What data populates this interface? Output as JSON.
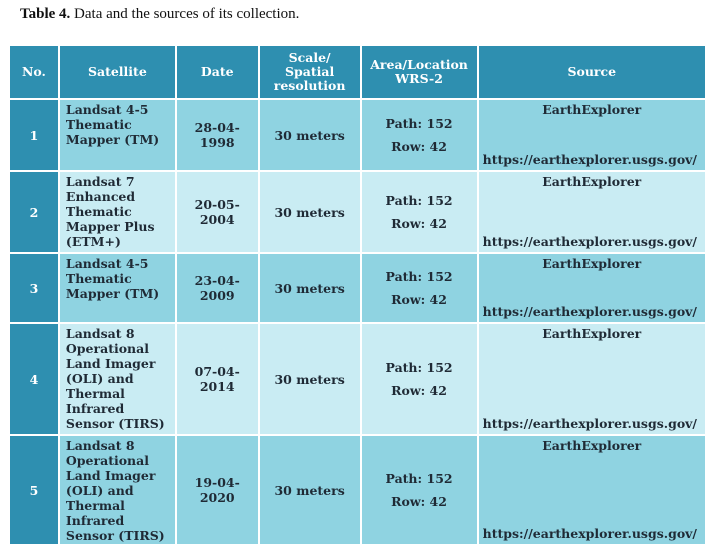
{
  "caption": {
    "label": "Table 4.",
    "text": " Data and the sources of its collection."
  },
  "table": {
    "headers": {
      "no": "No.",
      "satellite": "Satellite",
      "date": "Date",
      "scale": [
        "Scale/",
        "Spatial",
        "resolution"
      ],
      "area": [
        "Area/Location",
        "WRS-2"
      ],
      "source": "Source"
    },
    "rows": [
      {
        "no": "1",
        "satellite": [
          "Landsat 4-5",
          "Thematic",
          "Mapper (TM)"
        ],
        "date": [
          "28-04-",
          "1998"
        ],
        "scale": "30 meters",
        "path": "Path: 152",
        "row": "Row: 42",
        "source": "EarthExplorer",
        "url": "https://earthexplorer.usgs.gov/"
      },
      {
        "no": "2",
        "satellite": [
          "Landsat 7",
          "Enhanced",
          "Thematic",
          "Mapper Plus",
          "(ETM+)"
        ],
        "date": [
          "20-05-",
          "2004"
        ],
        "scale": "30 meters",
        "path": "Path: 152",
        "row": "Row: 42",
        "source": "EarthExplorer",
        "url": "https://earthexplorer.usgs.gov/"
      },
      {
        "no": "3",
        "satellite": [
          "Landsat 4-5",
          "Thematic",
          "Mapper (TM)"
        ],
        "date": [
          "23-04-",
          "2009"
        ],
        "scale": "30 meters",
        "path": "Path: 152",
        "row": "Row: 42",
        "source": "EarthExplorer",
        "url": "https://earthexplorer.usgs.gov/"
      },
      {
        "no": "4",
        "satellite": [
          "Landsat 8",
          "Operational",
          "Land Imager",
          "(OLI) and",
          "Thermal",
          "Infrared",
          "Sensor (TIRS)"
        ],
        "date": [
          "07-04-",
          "2014"
        ],
        "scale": "30 meters",
        "path": "Path: 152",
        "row": "Row: 42",
        "source": "EarthExplorer",
        "url": "https://earthexplorer.usgs.gov/"
      },
      {
        "no": "5",
        "satellite": [
          "Landsat 8",
          "Operational",
          "Land Imager",
          "(OLI) and",
          "Thermal",
          "Infrared",
          "Sensor (TIRS)"
        ],
        "date": [
          "19-04-",
          "2020"
        ],
        "scale": "30 meters",
        "path": "Path: 152",
        "row": "Row: 42",
        "source": "EarthExplorer",
        "url": "https://earthexplorer.usgs.gov/"
      }
    ]
  }
}
